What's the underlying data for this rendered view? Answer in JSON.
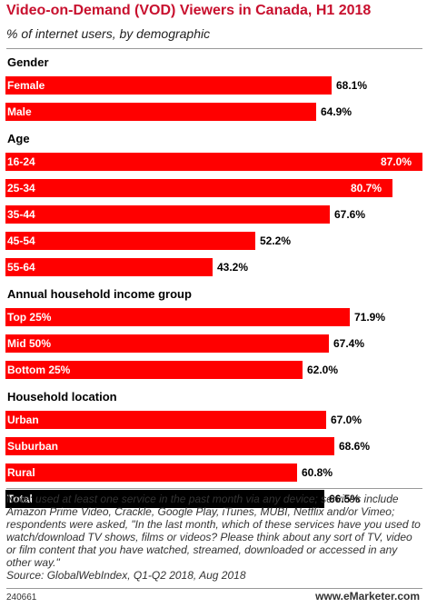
{
  "header": {
    "title": "Video-on-Demand (VOD) Viewers in Canada, H1 2018",
    "subtitle": "% of internet users, by demographic"
  },
  "chart_data": {
    "type": "bar",
    "orientation": "horizontal",
    "xlim": [
      0,
      87.0
    ],
    "value_suffix": "%",
    "groups": [
      {
        "label": "Gender",
        "items": [
          {
            "name": "Female",
            "value": 68.1
          },
          {
            "name": "Male",
            "value": 64.9
          }
        ]
      },
      {
        "label": "Age",
        "items": [
          {
            "name": "16-24",
            "value": 87.0
          },
          {
            "name": "25-34",
            "value": 80.7
          },
          {
            "name": "35-44",
            "value": 67.6
          },
          {
            "name": "45-54",
            "value": 52.2
          },
          {
            "name": "55-64",
            "value": 43.2
          }
        ]
      },
      {
        "label": "Annual household income group",
        "items": [
          {
            "name": "Top 25%",
            "value": 71.9
          },
          {
            "name": "Mid 50%",
            "value": 67.4
          },
          {
            "name": "Bottom 25%",
            "value": 62.0
          }
        ]
      },
      {
        "label": "Household location",
        "items": [
          {
            "name": "Urban",
            "value": 67.0
          },
          {
            "name": "Suburban",
            "value": 68.6
          },
          {
            "name": "Rural",
            "value": 60.8
          }
        ]
      },
      {
        "label": "",
        "items": [
          {
            "name": "Total",
            "value": 66.5,
            "total": true
          }
        ]
      }
    ],
    "colors": {
      "bar": "#ff0000",
      "total": "#000000"
    }
  },
  "footer": {
    "note": "Note: used at least one service in the past month via any device; services include Amazon Prime Video, Crackle, Google Play, iTunes, MUBI, Netflix and/or Vimeo; respondents were asked, \"In the last month, which of these services have you used to watch/download TV shows, films or videos? Please think about any sort of TV, video or film content that you have watched, streamed, downloaded or accessed in any other way.\"",
    "source": "Source: GlobalWebIndex, Q1-Q2 2018, Aug 2018",
    "id": "240661",
    "brand": "www.eMarketer.com"
  }
}
